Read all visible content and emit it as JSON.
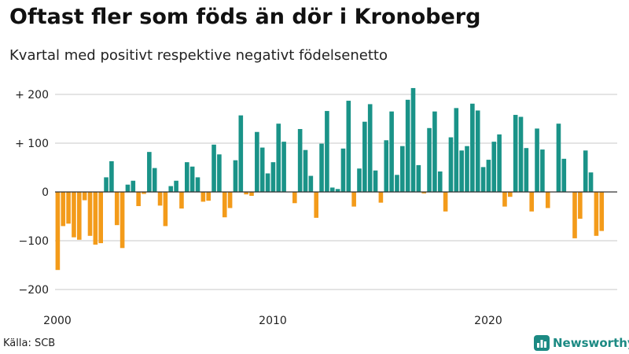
{
  "title": "Oftast fler som föds än dör i Kronoberg",
  "subtitle": "Kvartal med positivt respektive negativt födelsenetto",
  "source": "Källa: SCB",
  "brand": {
    "name": "Newsworthy",
    "icon": "newsworthy-chart-icon"
  },
  "colors": {
    "positive": "#1a9388",
    "negative": "#f39b1a",
    "grid": "#c8c8c8",
    "zero": "#333333",
    "brand": "#1c8a83"
  },
  "chart_data": {
    "type": "bar",
    "title": "Oftast fler som föds än dör i Kronoberg",
    "subtitle": "Kvartal med positivt respektive negativt födelsenetto",
    "xlabel": "",
    "ylabel": "",
    "ylim": [
      -220,
      225
    ],
    "grid": true,
    "y_ticks": [
      {
        "value": 200,
        "label": "+ 200"
      },
      {
        "value": 100,
        "label": "+ 100"
      },
      {
        "value": 0,
        "label": "0"
      },
      {
        "value": -100,
        "label": "−100"
      },
      {
        "value": -200,
        "label": "−200"
      }
    ],
    "x_ticks": [
      {
        "value": 2000,
        "label": "2000"
      },
      {
        "value": 2010,
        "label": "2010"
      },
      {
        "value": 2020,
        "label": "2020"
      }
    ],
    "x_start": 2000,
    "period": "quarter",
    "values": [
      -160,
      -70,
      -65,
      -93,
      -98,
      -17,
      -90,
      -108,
      -105,
      30,
      63,
      -68,
      -115,
      15,
      23,
      -29,
      -4,
      82,
      49,
      -28,
      -70,
      12,
      23,
      -34,
      61,
      52,
      30,
      -20,
      -18,
      97,
      77,
      -52,
      -33,
      65,
      157,
      -5,
      -8,
      123,
      91,
      38,
      61,
      140,
      103,
      0,
      -23,
      129,
      86,
      33,
      -53,
      99,
      166,
      9,
      6,
      89,
      187,
      -30,
      48,
      144,
      180,
      44,
      -22,
      106,
      165,
      35,
      94,
      189,
      213,
      55,
      -3,
      131,
      165,
      42,
      -40,
      112,
      172,
      85,
      94,
      181,
      167,
      51,
      66,
      103,
      118,
      -30,
      -10,
      158,
      154,
      90,
      -40,
      130,
      87,
      -33,
      0,
      140,
      68,
      0,
      -95,
      -55,
      85,
      40,
      -90,
      -80
    ]
  }
}
